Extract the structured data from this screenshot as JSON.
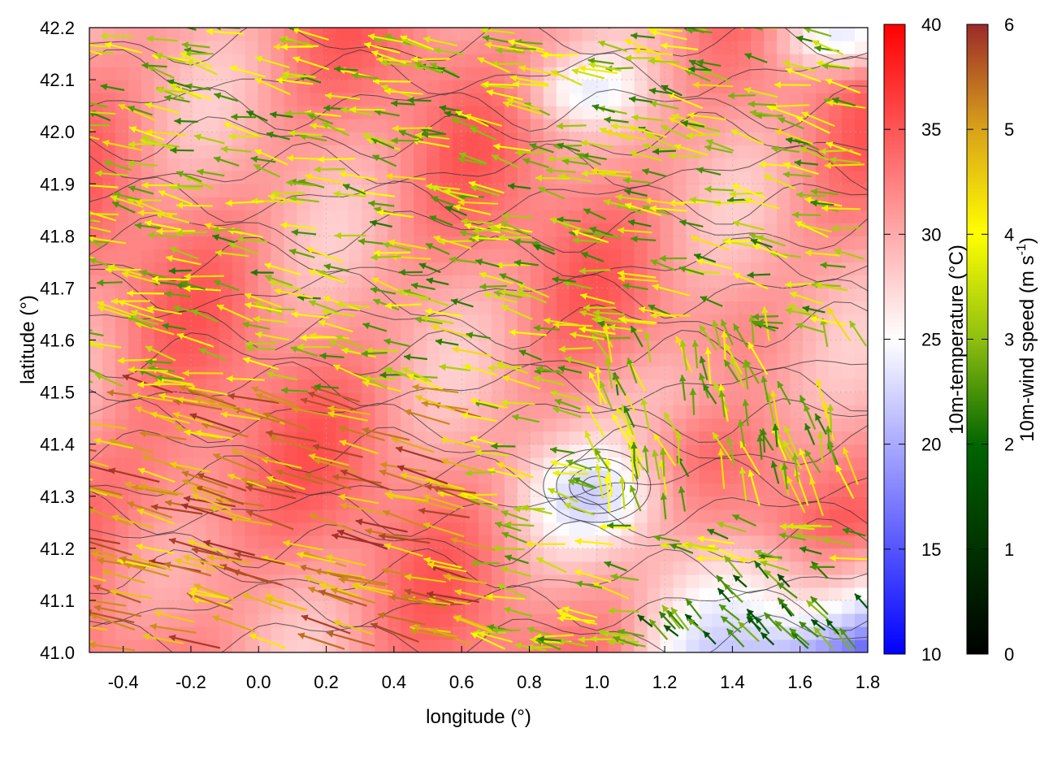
{
  "chart_data": {
    "type": "heatmap",
    "title": "",
    "xlabel": "longitude (°)",
    "ylabel": "latitude (°)",
    "xlim": [
      -0.5,
      1.8
    ],
    "ylim": [
      41.0,
      42.2
    ],
    "x_ticks": [
      "-0.4",
      "-0.2",
      "0.0",
      "0.2",
      "0.4",
      "0.6",
      "0.8",
      "1.0",
      "1.2",
      "1.4",
      "1.6",
      "1.8"
    ],
    "y_ticks": [
      "41.0",
      "41.1",
      "41.2",
      "41.3",
      "41.4",
      "41.5",
      "41.6",
      "41.7",
      "41.8",
      "41.9",
      "42.0",
      "42.1",
      "42.2"
    ],
    "grid": true,
    "overlays": [
      "wind vector arrows coloured by 10m-wind speed",
      "temperature contour lines"
    ],
    "temperature_colorbar": {
      "label": "10m-temperature (°C)",
      "range": [
        10,
        40
      ],
      "ticks": [
        "10",
        "15",
        "20",
        "25",
        "30",
        "35",
        "40"
      ],
      "colors": [
        "#0000ff",
        "#ffffff",
        "#ff0000"
      ]
    },
    "wind_colorbar": {
      "label_main": "10m-wind speed (m s",
      "label_sup": "-1",
      "label_end": ")",
      "range": [
        0,
        6
      ],
      "ticks": [
        "0",
        "1",
        "2",
        "3",
        "4",
        "5",
        "6"
      ],
      "colors": [
        "#000000",
        "#006400",
        "#8fbf10",
        "#ffff00",
        "#d9a21a",
        "#9c2a2a"
      ]
    }
  }
}
